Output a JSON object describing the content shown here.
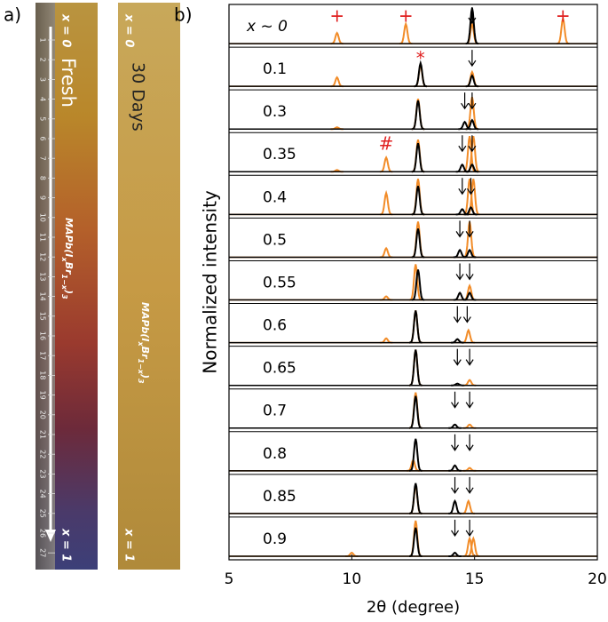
{
  "panel_a": {
    "label": "a)",
    "strips": [
      {
        "top": "x = 0",
        "title": "Fresh",
        "bottom": "x = 1",
        "formula": [
          {
            "text": "MAPb(I"
          },
          {
            "text": "x",
            "sub": true
          },
          {
            "text": "Br"
          },
          {
            "text": "1−x",
            "sub": true
          },
          {
            "text": ")"
          },
          {
            "text": "3",
            "sub": true
          }
        ],
        "ruler_labels": [
          1,
          2,
          3,
          4,
          5,
          6,
          7,
          8,
          9,
          10,
          11,
          12,
          13,
          14,
          15,
          16,
          17,
          18,
          19,
          20,
          21,
          22,
          23,
          24,
          25,
          26,
          27
        ]
      },
      {
        "top": "x = 0",
        "title": "30 Days",
        "bottom": "x = 1",
        "formula": [
          {
            "text": "MAPb(I"
          },
          {
            "text": "x",
            "sub": true
          },
          {
            "text": "Br"
          },
          {
            "text": "1−x",
            "sub": true
          },
          {
            "text": ")"
          },
          {
            "text": "3",
            "sub": true
          }
        ]
      }
    ]
  },
  "chart_data": {
    "type": "xrd-stack",
    "label": "b)",
    "xlabel": "2θ (degree)",
    "ylabel": "Normalized intensity",
    "xlim": [
      5,
      20
    ],
    "xticks": [
      5,
      10,
      15,
      20
    ],
    "rows": [
      {
        "label": "x ~ 0",
        "series": [
          {
            "color": "#f28c28",
            "x": [
              9.4,
              12.2,
              14.9,
              18.6
            ],
            "values": [
              0.3,
              0.55,
              0.55,
              0.7
            ]
          },
          {
            "color": "#000000",
            "x": [
              14.9
            ],
            "values": [
              1.0
            ]
          }
        ],
        "arrows": [
          14.9
        ],
        "markers": [
          {
            "x": 9.4,
            "text": "+"
          },
          {
            "x": 12.2,
            "text": "+"
          },
          {
            "x": 18.6,
            "text": "+"
          }
        ]
      },
      {
        "label": "0.1",
        "series": [
          {
            "color": "#f28c28",
            "x": [
              9.4,
              12.8,
              14.9
            ],
            "values": [
              0.25,
              0.6,
              0.4
            ]
          },
          {
            "color": "#000000",
            "x": [
              12.8,
              14.9
            ],
            "values": [
              0.65,
              0.3
            ]
          }
        ],
        "arrows": [
          14.9
        ],
        "markers": [
          {
            "x": 12.8,
            "text": "*"
          }
        ]
      },
      {
        "label": "0.3",
        "series": [
          {
            "color": "#f28c28",
            "x": [
              9.4,
              12.7,
              14.9
            ],
            "values": [
              0.05,
              0.85,
              0.9
            ]
          },
          {
            "color": "#000000",
            "x": [
              12.7,
              14.6,
              14.9
            ],
            "values": [
              0.8,
              0.2,
              0.25
            ]
          }
        ],
        "arrows": [
          14.6,
          14.9
        ]
      },
      {
        "label": "0.35",
        "series": [
          {
            "color": "#f28c28",
            "x": [
              9.4,
              11.4,
              12.7,
              14.8,
              14.95
            ],
            "values": [
              0.05,
              0.4,
              0.9,
              1.0,
              1.0
            ]
          },
          {
            "color": "#000000",
            "x": [
              12.7,
              14.5,
              14.9
            ],
            "values": [
              0.8,
              0.2,
              0.2
            ]
          }
        ],
        "arrows": [
          14.5,
          14.9
        ],
        "markers": [
          {
            "x": 11.4,
            "text": "#"
          }
        ]
      },
      {
        "label": "0.4",
        "series": [
          {
            "color": "#f28c28",
            "x": [
              11.4,
              12.7,
              14.8,
              14.95
            ],
            "values": [
              0.6,
              1.0,
              1.0,
              1.0
            ]
          },
          {
            "color": "#000000",
            "x": [
              12.7,
              14.5,
              14.85
            ],
            "values": [
              0.8,
              0.15,
              0.2
            ]
          }
        ],
        "arrows": [
          14.5,
          14.85
        ]
      },
      {
        "label": "0.5",
        "series": [
          {
            "color": "#f28c28",
            "x": [
              11.4,
              12.7,
              14.8
            ],
            "values": [
              0.25,
              1.0,
              1.0
            ]
          },
          {
            "color": "#000000",
            "x": [
              12.7,
              14.4,
              14.8
            ],
            "values": [
              0.8,
              0.2,
              0.2
            ]
          }
        ],
        "arrows": [
          14.4,
          14.8
        ]
      },
      {
        "label": "0.55",
        "series": [
          {
            "color": "#f28c28",
            "x": [
              11.4,
              12.6,
              14.8
            ],
            "values": [
              0.1,
              1.0,
              0.4
            ]
          },
          {
            "color": "#000000",
            "x": [
              12.7,
              14.4,
              14.8
            ],
            "values": [
              0.85,
              0.2,
              0.2
            ]
          }
        ],
        "arrows": [
          14.4,
          14.8
        ]
      },
      {
        "label": "0.6",
        "series": [
          {
            "color": "#f28c28",
            "x": [
              11.4,
              12.6,
              14.75
            ],
            "values": [
              0.12,
              0.9,
              0.35
            ]
          },
          {
            "color": "#000000",
            "x": [
              12.6,
              14.3
            ],
            "values": [
              0.9,
              0.1
            ]
          }
        ],
        "arrows": [
          14.3,
          14.7
        ]
      },
      {
        "label": "0.65",
        "series": [
          {
            "color": "#f28c28",
            "x": [
              12.6,
              14.8
            ],
            "values": [
              1.0,
              0.15
            ]
          },
          {
            "color": "#000000",
            "x": [
              12.6,
              14.3
            ],
            "values": [
              1.0,
              0.05
            ]
          }
        ],
        "arrows": [
          14.3,
          14.8
        ]
      },
      {
        "label": "0.7",
        "series": [
          {
            "color": "#f28c28",
            "x": [
              12.6,
              14.8
            ],
            "values": [
              1.0,
              0.1
            ]
          },
          {
            "color": "#000000",
            "x": [
              12.6,
              14.2
            ],
            "values": [
              0.9,
              0.1
            ]
          }
        ],
        "arrows": [
          14.2,
          14.8
        ]
      },
      {
        "label": "0.8",
        "series": [
          {
            "color": "#f28c28",
            "x": [
              12.5,
              14.8
            ],
            "values": [
              0.3,
              0.08
            ]
          },
          {
            "color": "#000000",
            "x": [
              12.6,
              14.2
            ],
            "values": [
              0.9,
              0.15
            ]
          }
        ],
        "arrows": [
          14.2,
          14.8
        ]
      },
      {
        "label": "0.85",
        "series": [
          {
            "color": "#f28c28",
            "x": [
              12.6,
              14.75
            ],
            "values": [
              0.8,
              0.35
            ]
          },
          {
            "color": "#000000",
            "x": [
              12.6,
              14.2
            ],
            "values": [
              0.85,
              0.35
            ]
          }
        ],
        "arrows": [
          14.2,
          14.8
        ]
      },
      {
        "label": "0.9",
        "series": [
          {
            "color": "#f28c28",
            "x": [
              10,
              12.6,
              14.8,
              14.95
            ],
            "values": [
              0.1,
              1.0,
              0.5,
              0.5
            ]
          },
          {
            "color": "#000000",
            "x": [
              12.6,
              14.2
            ],
            "values": [
              0.8,
              0.1
            ]
          }
        ],
        "arrows": [
          14.2,
          14.8
        ]
      }
    ]
  }
}
